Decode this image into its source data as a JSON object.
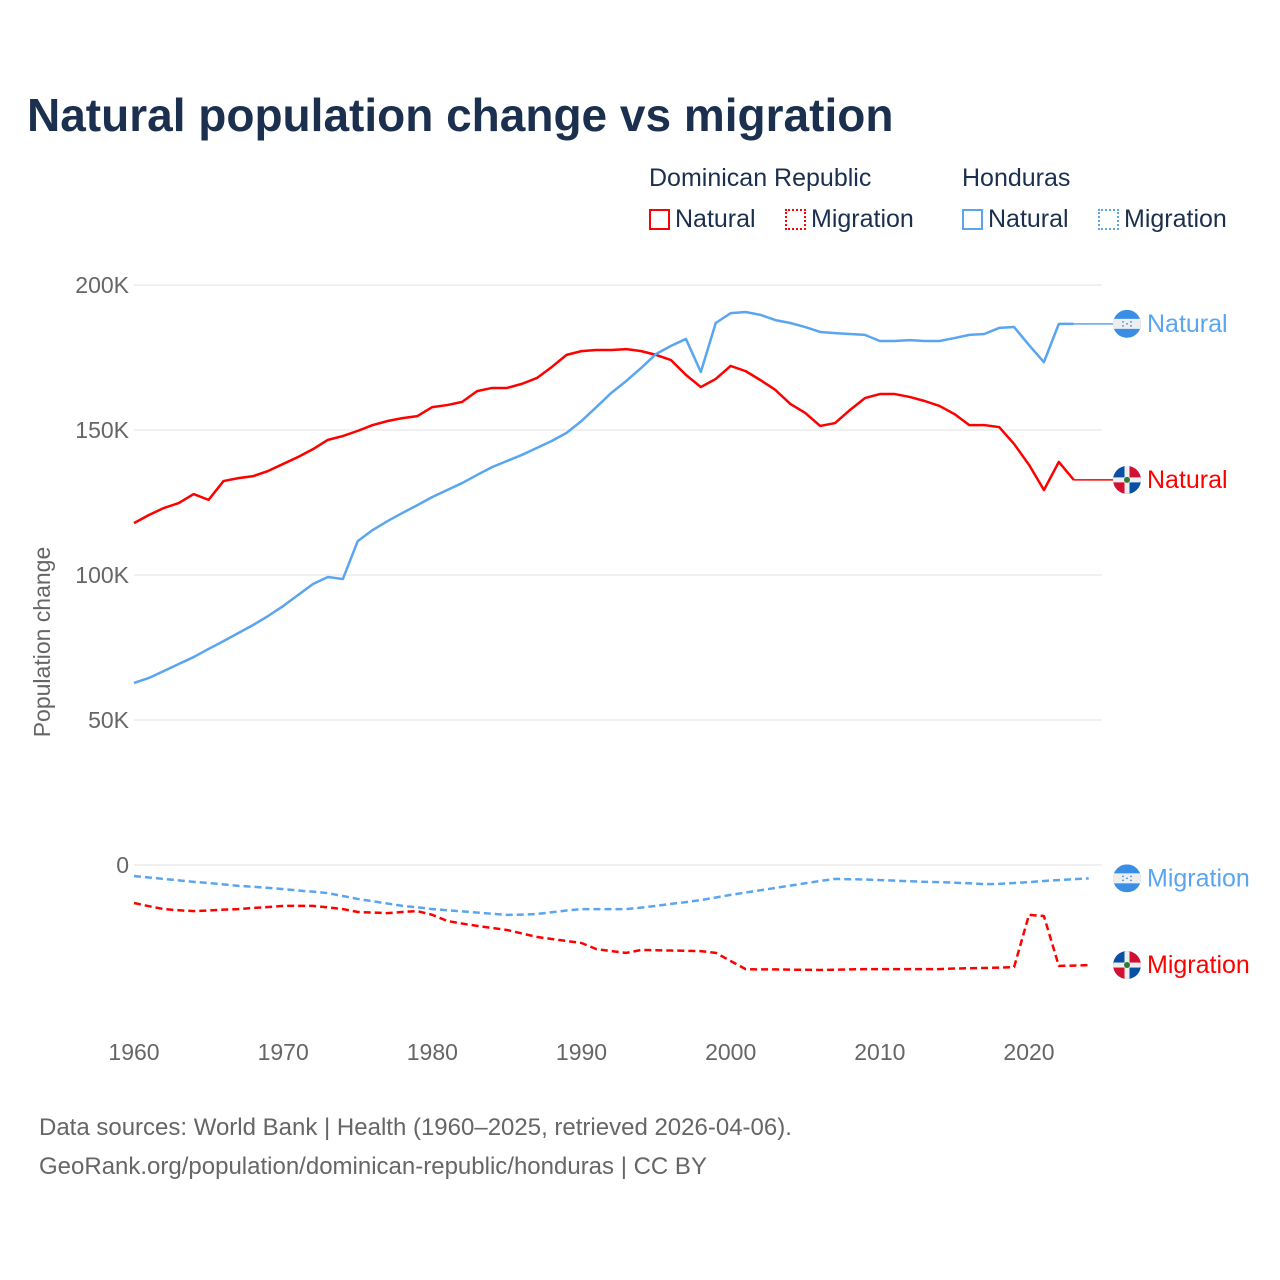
{
  "title": "Natural population change vs migration",
  "legend": {
    "groups": [
      {
        "country": "Dominican Republic",
        "items": [
          "Natural",
          "Migration"
        ],
        "color": "#ff0000"
      },
      {
        "country": "Honduras",
        "items": [
          "Natural",
          "Migration"
        ],
        "color": "#5aa5f0"
      }
    ]
  },
  "footer": [
    "Data sources: World Bank | Health (1960–2025, retrieved 2026-04-06).",
    "GeoRank.org/population/dominican-republic/honduras | CC BY"
  ],
  "chart_data": {
    "type": "line",
    "ylabel": "Population change",
    "ylim": [
      -50000,
      200000
    ],
    "xlim": [
      1960,
      2025
    ],
    "yticks": [
      {
        "v": 200000,
        "label": "200K"
      },
      {
        "v": 150000,
        "label": "150K"
      },
      {
        "v": 100000,
        "label": "100K"
      },
      {
        "v": 50000,
        "label": "50K"
      },
      {
        "v": 0,
        "label": "0"
      }
    ],
    "xticks": [
      1960,
      1970,
      1980,
      1990,
      2000,
      2010,
      2020
    ],
    "grid": true,
    "series": [
      {
        "name": "Dominican Republic Natural",
        "label": "Natural",
        "color": "#ff0000",
        "dash": false,
        "start": 1960,
        "values": [
          117.9,
          120.7,
          123.1,
          124.8,
          127.9,
          125.9,
          132.4,
          133.4,
          134.1,
          135.9,
          138.3,
          140.7,
          143.4,
          146.6,
          147.9,
          149.7,
          151.7,
          153.1,
          154.1,
          154.8,
          157.9,
          158.6,
          159.7,
          163.4,
          164.5,
          164.5,
          165.9,
          167.9,
          171.7,
          175.9,
          177.2,
          177.6,
          177.6,
          177.9,
          177.2,
          175.9,
          174.1,
          169.0,
          164.8,
          167.6,
          172.1,
          170.3,
          167.2,
          163.8,
          159.0,
          155.9,
          151.4,
          152.4,
          156.9,
          161.0,
          162.4,
          162.4,
          161.4,
          160.0,
          158.3,
          155.5,
          151.7,
          151.7,
          151.0,
          145.2,
          138.0,
          129.3,
          139.0,
          132.8
        ]
      },
      {
        "name": "Honduras Natural",
        "label": "Natural",
        "color": "#5aa5f0",
        "dash": false,
        "start": 1960,
        "values": [
          62.8,
          64.5,
          66.9,
          69.3,
          71.7,
          74.5,
          77.2,
          80.0,
          82.8,
          85.9,
          89.3,
          93.1,
          96.9,
          99.3,
          98.6,
          111.7,
          115.5,
          118.6,
          121.4,
          124.1,
          126.9,
          129.3,
          131.7,
          134.5,
          137.2,
          139.3,
          141.4,
          143.8,
          146.2,
          149.0,
          153.1,
          157.9,
          162.8,
          166.9,
          171.4,
          176.2,
          179.0,
          181.4,
          170.0,
          186.9,
          190.3,
          190.7,
          189.7,
          187.9,
          186.9,
          185.5,
          183.8,
          183.4,
          183.1,
          182.8,
          180.7,
          180.7,
          181.0,
          180.7,
          180.7,
          181.7,
          182.8,
          183.1,
          185.2,
          185.5,
          179.3,
          173.4,
          186.6,
          186.6
        ]
      },
      {
        "name": "Honduras Migration",
        "label": "Migration",
        "color": "#5aa5f0",
        "dash": true,
        "start": 1960,
        "values": [
          -3.8,
          -4.3,
          -4.8,
          -5.3,
          -5.8,
          -6.2,
          -6.7,
          -7.2,
          -7.5,
          -7.9,
          -8.3,
          -8.8,
          -9.2,
          -9.7,
          -10.7,
          -11.7,
          -12.5,
          -13.3,
          -14.1,
          -14.6,
          -15.2,
          -15.6,
          -16.0,
          -16.4,
          -16.8,
          -17.2,
          -17.1,
          -16.9,
          -16.3,
          -15.7,
          -15.2,
          -15.2,
          -15.2,
          -15.2,
          -14.7,
          -14.1,
          -13.4,
          -12.8,
          -12.1,
          -11.2,
          -10.3,
          -9.5,
          -8.7,
          -7.9,
          -7.1,
          -6.3,
          -5.5,
          -4.8,
          -4.9,
          -5.0,
          -5.2,
          -5.4,
          -5.6,
          -5.8,
          -5.9,
          -6.1,
          -6.3,
          -6.6,
          -6.5,
          -6.2,
          -5.9,
          -5.5,
          -5.2,
          -4.9,
          -4.6
        ]
      },
      {
        "name": "Dominican Republic Migration",
        "label": "Migration",
        "color": "#ff0000",
        "dash": true,
        "start": 1960,
        "values": [
          -13.1,
          -14.2,
          -15.2,
          -15.6,
          -15.9,
          -15.7,
          -15.4,
          -15.2,
          -14.8,
          -14.5,
          -14.1,
          -14.1,
          -14.1,
          -14.6,
          -15.2,
          -16.2,
          -16.4,
          -16.6,
          -16.2,
          -15.9,
          -17.2,
          -19.3,
          -20.2,
          -21.0,
          -21.7,
          -22.4,
          -23.6,
          -24.8,
          -25.5,
          -26.2,
          -26.9,
          -29.0,
          -29.7,
          -30.3,
          -29.3,
          -29.4,
          -29.5,
          -29.6,
          -29.7,
          -30.3,
          -33.1,
          -35.9,
          -36.0,
          -36.0,
          -36.1,
          -36.1,
          -36.2,
          -36.1,
          -36.0,
          -35.9,
          -35.9,
          -35.9,
          -35.9,
          -35.9,
          -35.9,
          -35.7,
          -35.6,
          -35.5,
          -35.4,
          -35.2,
          -17.2,
          -17.6,
          -34.8,
          -34.7,
          -34.5
        ]
      }
    ]
  }
}
